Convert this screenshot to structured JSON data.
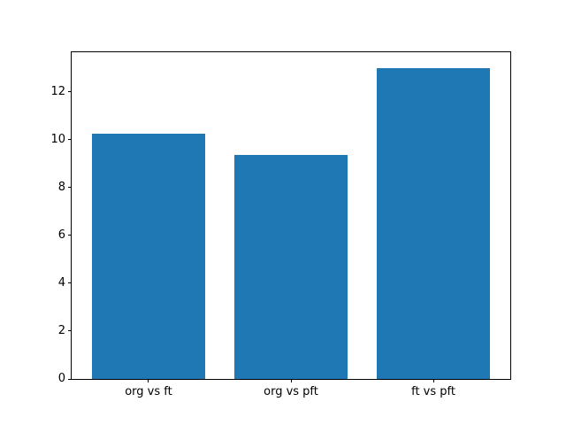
{
  "figure": {
    "background": "#ffffff"
  },
  "chart_data": {
    "type": "bar",
    "categories": [
      "org vs ft",
      "org vs pft",
      "ft vs pft"
    ],
    "values": [
      10.25,
      9.35,
      13.0
    ],
    "title": "",
    "xlabel": "",
    "ylabel": "",
    "ylim": [
      0,
      13.65
    ],
    "yticks": [
      0,
      2,
      4,
      6,
      8,
      10,
      12
    ],
    "bar_color": "#1f77b4",
    "bar_width": 0.8,
    "axis_color": "#000000",
    "tick_label_color": "#000000",
    "grid": false,
    "legend": "none"
  }
}
